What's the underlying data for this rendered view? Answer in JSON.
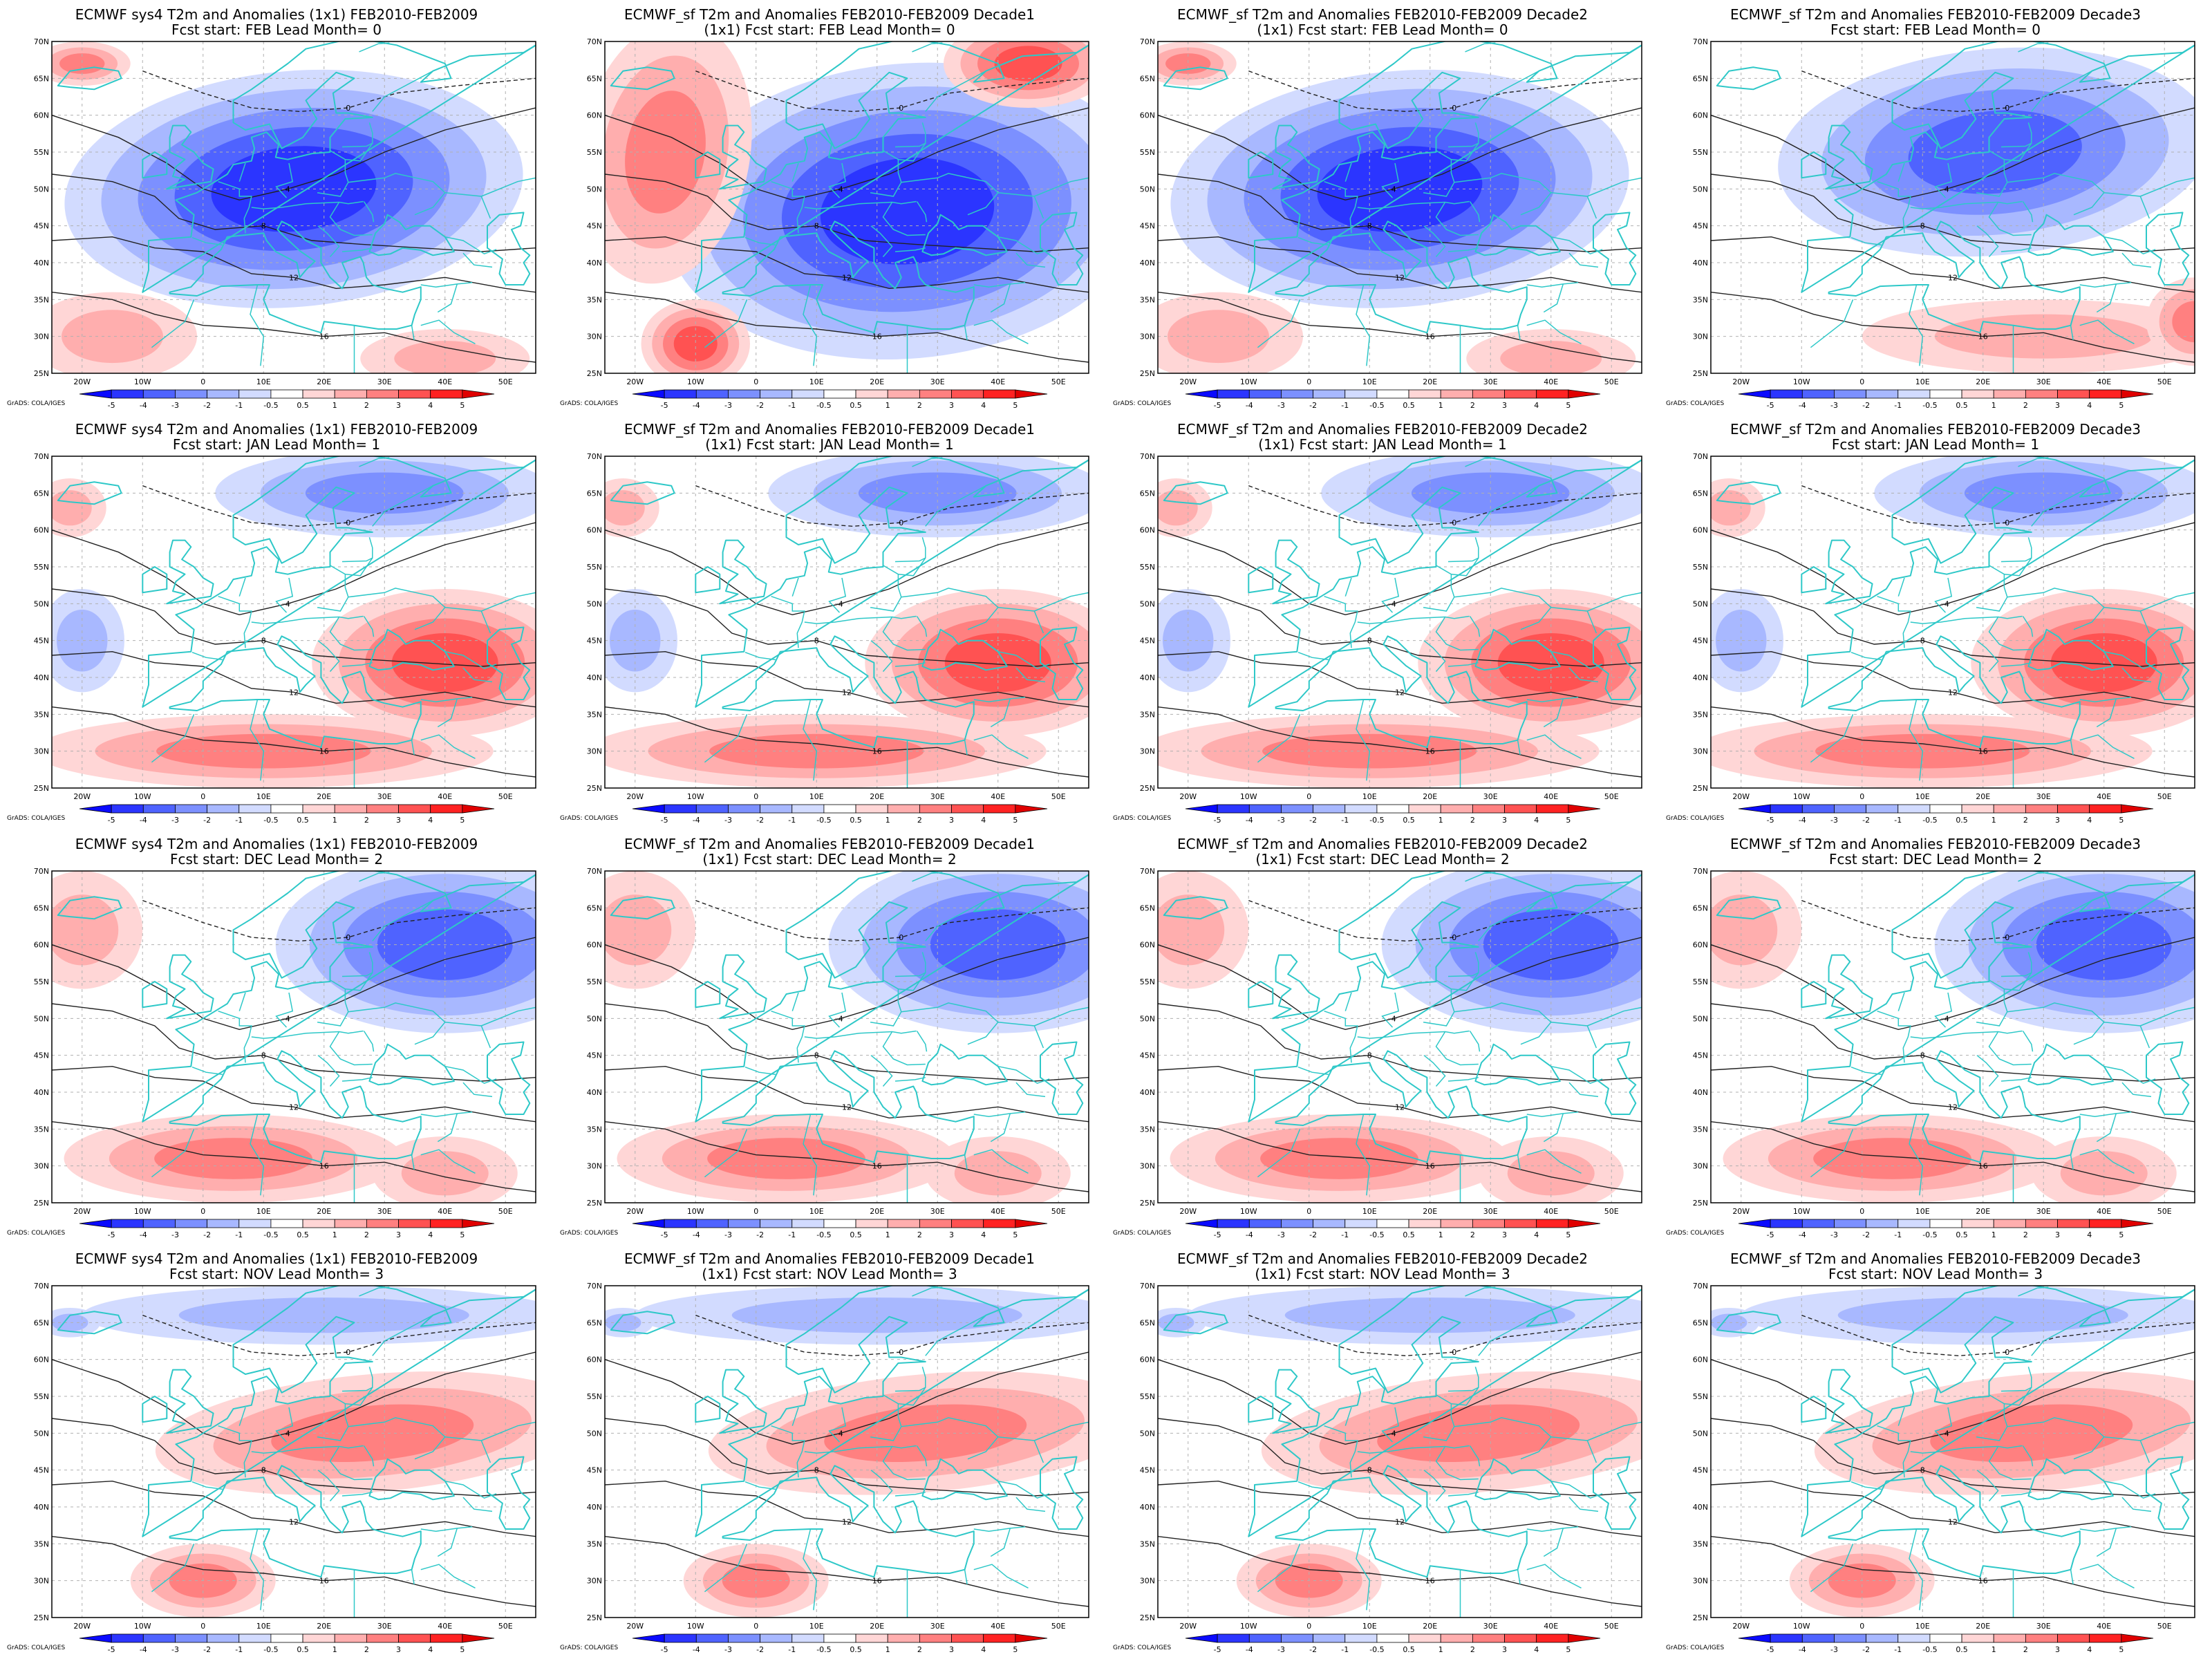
{
  "figure": {
    "colorbar": {
      "ticks": [
        "-5",
        "-4",
        "-3",
        "-2",
        "-1",
        "-0.5",
        "0.5",
        "1",
        "2",
        "3",
        "4",
        "5"
      ],
      "colors": [
        "#0a0aff",
        "#2b35ff",
        "#4f63ff",
        "#7c90ff",
        "#a8b8ff",
        "#d2dbff",
        "#ffffff",
        "#ffd6d6",
        "#ffaeae",
        "#ff8080",
        "#ff5252",
        "#ff2222",
        "#e00000"
      ],
      "credit": "GrADS: COLA/IGES"
    },
    "lon_ticks": [
      "20W",
      "10W",
      "0",
      "10E",
      "20E",
      "30E",
      "40E",
      "50E"
    ],
    "lat_ticks": [
      "70N",
      "65N",
      "60N",
      "55N",
      "50N",
      "45N",
      "40N",
      "35N",
      "30N",
      "25N"
    ],
    "colors": {
      "land_border": "#2ec8c8",
      "contour": "#222222",
      "grid": "#b0b0b0"
    },
    "panels": [
      {
        "title_line1": "ECMWF sys4 T2m and Anomalies (1x1) FEB2010-FEB2009",
        "title_line2": "Fcst start: FEB  Lead Month= 0",
        "pattern": "cold-strong"
      },
      {
        "title_line1": "ECMWF_sf T2m and Anomalies FEB2010-FEB2009 Decade1",
        "title_line2": "(1x1) Fcst start: FEB  Lead Month= 0",
        "pattern": "cold-extreme"
      },
      {
        "title_line1": "ECMWF_sf T2m and Anomalies FEB2010-FEB2009 Decade2",
        "title_line2": "(1x1) Fcst start: FEB  Lead Month= 0",
        "pattern": "cold-strong"
      },
      {
        "title_line1": "ECMWF_sf T2m and Anomalies FEB2010-FEB2009 Decade3",
        "title_line2": "Fcst start: FEB  Lead Month= 0",
        "pattern": "cold-moderate"
      },
      {
        "title_line1": "ECMWF sys4 T2m and Anomalies (1x1) FEB2010-FEB2009",
        "title_line2": "Fcst start: JAN  Lead Month= 1",
        "pattern": "warm-se"
      },
      {
        "title_line1": "ECMWF_sf T2m and Anomalies FEB2010-FEB2009 Decade1",
        "title_line2": "(1x1) Fcst start: JAN  Lead Month= 1",
        "pattern": "warm-se"
      },
      {
        "title_line1": "ECMWF_sf T2m and Anomalies FEB2010-FEB2009 Decade2",
        "title_line2": "(1x1) Fcst start: JAN  Lead Month= 1",
        "pattern": "warm-se"
      },
      {
        "title_line1": "ECMWF_sf T2m and Anomalies FEB2010-FEB2009 Decade3",
        "title_line2": "Fcst start: JAN  Lead Month= 1",
        "pattern": "warm-se"
      },
      {
        "title_line1": "ECMWF sys4 T2m and Anomalies (1x1) FEB2010-FEB2009",
        "title_line2": "Fcst start: DEC  Lead Month= 2",
        "pattern": "cold-ne"
      },
      {
        "title_line1": "ECMWF_sf T2m and Anomalies FEB2010-FEB2009 Decade1",
        "title_line2": "(1x1) Fcst start: DEC  Lead Month= 2",
        "pattern": "cold-ne"
      },
      {
        "title_line1": "ECMWF_sf T2m and Anomalies FEB2010-FEB2009 Decade2",
        "title_line2": "(1x1) Fcst start: DEC  Lead Month= 2",
        "pattern": "cold-ne"
      },
      {
        "title_line1": "ECMWF_sf T2m and Anomalies FEB2010-FEB2009 Decade3",
        "title_line2": "Fcst start: DEC  Lead Month= 2",
        "pattern": "cold-ne"
      },
      {
        "title_line1": "ECMWF sys4 T2m and Anomalies (1x1) FEB2010-FEB2009",
        "title_line2": "Fcst start: NOV  Lead Month= 3",
        "pattern": "warm-center"
      },
      {
        "title_line1": "ECMWF_sf T2m and Anomalies FEB2010-FEB2009 Decade1",
        "title_line2": "(1x1) Fcst start: NOV  Lead Month= 3",
        "pattern": "warm-center"
      },
      {
        "title_line1": "ECMWF_sf T2m and Anomalies FEB2010-FEB2009 Decade2",
        "title_line2": "(1x1) Fcst start: NOV  Lead Month= 3",
        "pattern": "warm-center"
      },
      {
        "title_line1": "ECMWF_sf T2m and Anomalies FEB2010-FEB2009 Decade3",
        "title_line2": "Fcst start: NOV  Lead Month= 3",
        "pattern": "warm-center"
      }
    ]
  }
}
